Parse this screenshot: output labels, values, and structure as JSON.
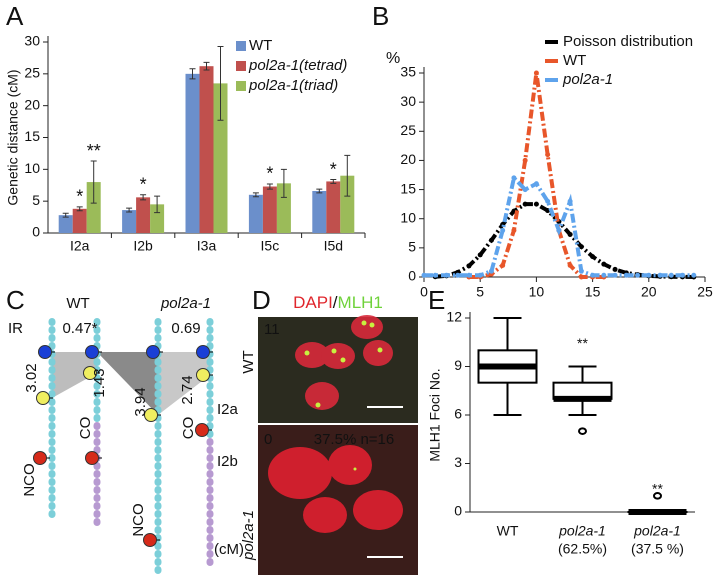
{
  "panels": [
    "A",
    "B",
    "C",
    "D",
    "E"
  ],
  "chart_data": [
    {
      "type": "bar",
      "y_label": "Genetic distance (cM)",
      "categories": [
        "I2a",
        "I2b",
        "I3a",
        "I5c",
        "I5d"
      ],
      "series": [
        {
          "name": "WT",
          "color": "#6b8fcb",
          "values": [
            2.8,
            3.6,
            25,
            6,
            6.6
          ],
          "errors": [
            0.3,
            0.3,
            0.8,
            0.3,
            0.3
          ],
          "labels": [
            null,
            null,
            null,
            null,
            null
          ]
        },
        {
          "name": "pol2a-1(tetrad)",
          "color": "#c0504d",
          "values": [
            3.8,
            5.6,
            26.2,
            7.3,
            8.1
          ],
          "errors": [
            0.3,
            0.4,
            0.6,
            0.4,
            0.3
          ],
          "labels": [
            "*",
            "*",
            null,
            "*",
            "*"
          ]
        },
        {
          "name": "pol2a-1(triad)",
          "color": "#9bbb59",
          "values": [
            8,
            4.5,
            23.5,
            7.8,
            9
          ],
          "errors": [
            3.3,
            1.3,
            5.8,
            2.2,
            3.2
          ],
          "labels": [
            "**",
            null,
            null,
            null,
            null
          ]
        }
      ],
      "ylim": [
        0,
        30
      ],
      "yticks": [
        0,
        5,
        10,
        15,
        20,
        25,
        30
      ]
    },
    {
      "type": "line",
      "y_label": "%",
      "x": [
        0,
        1,
        2,
        3,
        4,
        5,
        6,
        7,
        8,
        9,
        10,
        11,
        12,
        13,
        14,
        15,
        16,
        17,
        18,
        19,
        20,
        21,
        22,
        23,
        24
      ],
      "series": [
        {
          "name": "Poisson distribution",
          "color": "#000000",
          "values": [
            null,
            0.05,
            0.2,
            0.8,
            1.9,
            3.8,
            6.3,
            9,
            11.3,
            12.5,
            12.5,
            11.4,
            9.5,
            7.3,
            5.2,
            3.5,
            2.2,
            1.3,
            0.7,
            0.4,
            0.2,
            0.1,
            0.04,
            0.02,
            0.01
          ]
        },
        {
          "name": "WT",
          "color": "#e8562a",
          "values": [
            null,
            null,
            null,
            null,
            0,
            0,
            0.5,
            2,
            8,
            20,
            35,
            21,
            8,
            2,
            0,
            0,
            0,
            null,
            null,
            null,
            null,
            null,
            null,
            null,
            null
          ]
        },
        {
          "name": "pol2a-1",
          "color": "#5ea3ec",
          "values": [
            0.3,
            0.3,
            0.3,
            0.3,
            0.3,
            0.3,
            1,
            8,
            17,
            15,
            16,
            13,
            8,
            13,
            1,
            0.3,
            0.3,
            0.3,
            0.3,
            0.3,
            0.3,
            0.3,
            0.3,
            0.3,
            0.3
          ]
        }
      ],
      "xlim": [
        0,
        25
      ],
      "xticks": [
        0,
        5,
        10,
        15,
        20,
        25
      ],
      "ylim": [
        0,
        35
      ],
      "yticks": [
        0,
        5,
        10,
        15,
        20,
        25,
        30,
        35
      ]
    },
    {
      "type": "box",
      "y_label": "MLH1 Foci No.",
      "categories": [
        "WT",
        "pol2a-1",
        "pol2a-1"
      ],
      "category_notes": [
        null,
        "(62.5%)",
        "(37.5 %)"
      ],
      "boxes": [
        {
          "min": 6,
          "q1": 8,
          "median": 9,
          "q3": 10,
          "max": 12,
          "outliers": []
        },
        {
          "min": 6,
          "q1": 7,
          "median": 7,
          "q3": 8,
          "max": 9,
          "outliers": [
            5
          ]
        },
        {
          "min": 0,
          "q1": 0,
          "median": 0,
          "q3": 0,
          "max": 0,
          "outliers": [
            1
          ]
        }
      ],
      "labels": [
        null,
        "**",
        "**"
      ],
      "ylim": [
        0,
        12
      ],
      "yticks": [
        0,
        3,
        6,
        9,
        12
      ]
    }
  ],
  "diagram": {
    "genotypes": [
      "WT",
      "pol2a-1"
    ],
    "ir_label": "IR",
    "ir_values": [
      "0.47*",
      "0.69"
    ],
    "distances": [
      "3.02",
      "1.43",
      "3.94",
      "2.74"
    ],
    "classes": [
      "NCO",
      "CO",
      "NCO",
      "CO"
    ],
    "intervals": [
      "I2a",
      "I2b"
    ],
    "unit": "(cM)"
  },
  "micrographs": {
    "stain_red": "DAPI",
    "separator": "/",
    "stain_green": "MLH1",
    "top": {
      "count": "11",
      "genotype": "WT"
    },
    "bottom": {
      "count": "0",
      "note": "37.5% n=16",
      "genotype": "pol2a-1"
    }
  }
}
